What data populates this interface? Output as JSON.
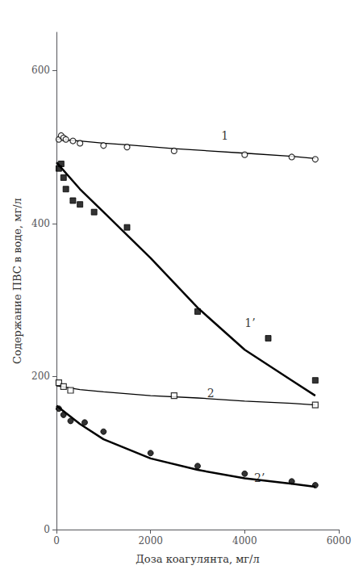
{
  "chart_data": {
    "type": "line",
    "xlabel": "Доза коагулянта, мг/л",
    "ylabel": "Содержание ПВС в воде, мг/л",
    "xlim": [
      0,
      6000
    ],
    "ylim": [
      0,
      650
    ],
    "xticks": [
      0,
      2000,
      4000,
      6000
    ],
    "yticks": [
      0,
      200,
      400,
      600
    ],
    "grid": false,
    "series": [
      {
        "type": "line",
        "color": "#000000",
        "line_style": "thin",
        "x": [
          0,
          500,
          1000,
          1500,
          2500,
          4000,
          5000,
          5500
        ],
        "values": [
          510,
          508,
          505,
          503,
          498,
          492,
          488,
          485
        ]
      },
      {
        "type": "scatter",
        "color": "#000000",
        "marker": "circle_open",
        "x": [
          50,
          100,
          150,
          200,
          350,
          500,
          1000,
          1500,
          2500,
          4000,
          5000,
          5500
        ],
        "values": [
          510,
          515,
          512,
          510,
          508,
          505,
          502,
          500,
          495,
          490,
          487,
          484
        ]
      },
      {
        "type": "line",
        "color": "#000000",
        "line_style": "thick",
        "x": [
          0,
          500,
          1000,
          1500,
          2000,
          3000,
          4000,
          5000,
          5500
        ],
        "values": [
          480,
          445,
          415,
          385,
          355,
          290,
          235,
          195,
          175
        ]
      },
      {
        "type": "scatter",
        "color": "#000000",
        "marker": "square_filled",
        "x": [
          50,
          100,
          150,
          200,
          350,
          500,
          800,
          1500,
          3000,
          4500,
          5500
        ],
        "values": [
          472,
          478,
          460,
          445,
          430,
          425,
          415,
          395,
          285,
          250,
          195
        ]
      },
      {
        "type": "line",
        "color": "#000000",
        "line_style": "thin",
        "x": [
          0,
          500,
          1000,
          2000,
          3000,
          4000,
          5000,
          5500
        ],
        "values": [
          188,
          183,
          180,
          175,
          172,
          168,
          165,
          163
        ]
      },
      {
        "type": "scatter",
        "color": "#000000",
        "marker": "square_open",
        "x": [
          50,
          150,
          300,
          2500,
          5500
        ],
        "values": [
          192,
          187,
          182,
          175,
          163
        ]
      },
      {
        "type": "line",
        "color": "#000000",
        "line_style": "thick",
        "x": [
          0,
          500,
          1000,
          2000,
          3000,
          4000,
          5000,
          5500
        ],
        "values": [
          162,
          138,
          118,
          93,
          78,
          67,
          60,
          56
        ]
      },
      {
        "type": "scatter",
        "color": "#000000",
        "marker": "circle_filled",
        "x": [
          50,
          150,
          300,
          600,
          1000,
          2000,
          3000,
          4000,
          5000,
          5500
        ],
        "values": [
          158,
          150,
          142,
          140,
          128,
          100,
          83,
          73,
          63,
          58
        ]
      }
    ],
    "annotations": [
      {
        "text": "1",
        "x": 3500,
        "y": 515
      },
      {
        "text": "1’",
        "x": 4000,
        "y": 270
      },
      {
        "text": "2",
        "x": 3200,
        "y": 178
      },
      {
        "text": "2’",
        "x": 4200,
        "y": 68
      }
    ]
  }
}
